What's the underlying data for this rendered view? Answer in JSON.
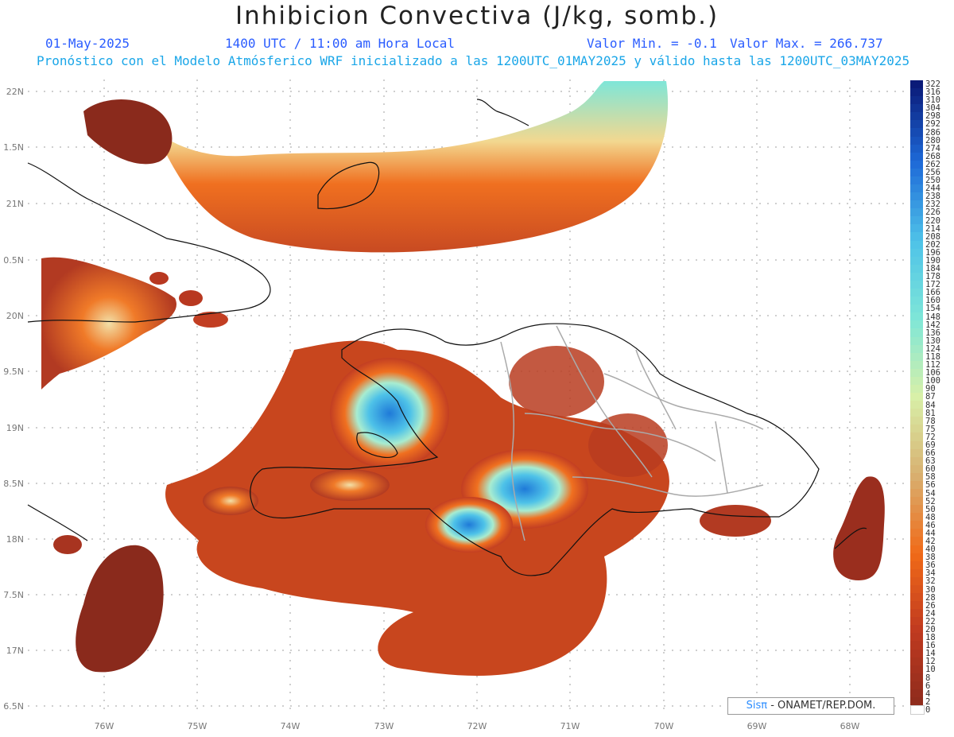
{
  "header": {
    "title": "Inhibicion Convectiva (J/kg, somb.)",
    "date": "01-May-2025",
    "time": "1400 UTC / 11:00 am Hora Local",
    "valmin": "Valor Min. = -0.1",
    "valmax": "Valor Max. = 266.737",
    "model_line": "Pronóstico con el Modelo Atmósferico WRF inicializado a las 1200UTC_01MAY2025 y válido hasta las  1200UTC_03MAY2025"
  },
  "axes": {
    "lat_labels": [
      "22N",
      "1.5N",
      "21N",
      "0.5N",
      "20N",
      "9.5N",
      "19N",
      "8.5N",
      "18N",
      "7.5N",
      "17N",
      "6.5N"
    ],
    "lon_labels": [
      "76W",
      "75W",
      "74W",
      "73W",
      "72W",
      "71W",
      "70W",
      "69W",
      "68W"
    ]
  },
  "colorbar": {
    "labels": [
      "322",
      "316",
      "310",
      "304",
      "298",
      "292",
      "286",
      "280",
      "274",
      "268",
      "262",
      "256",
      "250",
      "244",
      "238",
      "232",
      "226",
      "220",
      "214",
      "208",
      "202",
      "196",
      "190",
      "184",
      "178",
      "172",
      "166",
      "160",
      "154",
      "148",
      "142",
      "136",
      "130",
      "124",
      "118",
      "112",
      "106",
      "100",
      "90",
      "87",
      "84",
      "81",
      "78",
      "75",
      "72",
      "69",
      "66",
      "63",
      "60",
      "58",
      "56",
      "54",
      "52",
      "50",
      "48",
      "46",
      "44",
      "42",
      "40",
      "38",
      "36",
      "34",
      "32",
      "30",
      "28",
      "26",
      "24",
      "22",
      "20",
      "18",
      "16",
      "14",
      "12",
      "10",
      "8",
      "6",
      "4",
      "2",
      "0"
    ],
    "colors": {
      "max": "#0a1a78",
      "high": "#1e6ad8",
      "mid": "#4ec2e8",
      "aqua": "#7ee6d8",
      "pale": "#d8f0a8",
      "tan": "#d8b070",
      "orange": "#f06a18",
      "red": "#c03a20",
      "dark": "#8a2a1c"
    }
  },
  "credit": {
    "brand": "Sisπ",
    "org": "- ONAMET/REP.DOM."
  }
}
